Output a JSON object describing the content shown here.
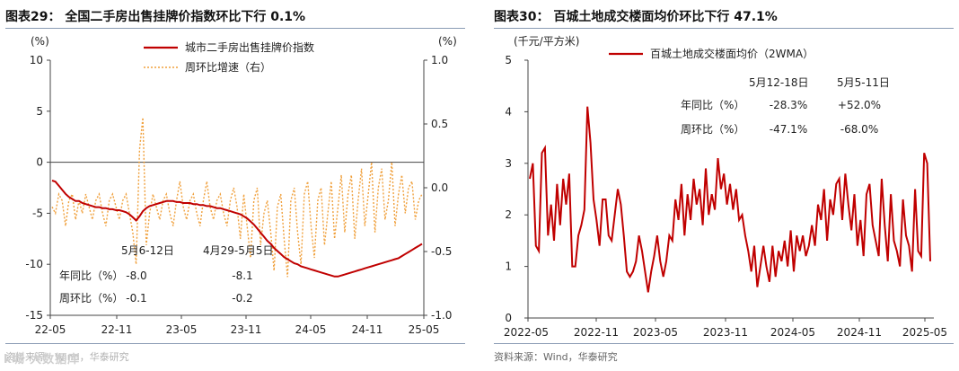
{
  "chart_data": [
    {
      "type": "line",
      "title": "图表29： 全国二手房出售挂牌价指数环比下行 0.1%",
      "source": "资料来源：Wind，华泰研究",
      "left_unit": "(%)",
      "right_unit": "(%)",
      "ylim_left": [
        -15,
        10
      ],
      "ylim_right": [
        -1.0,
        1.0
      ],
      "left_ticks": [
        "10",
        "5",
        "0",
        "-5",
        "-10",
        "-15"
      ],
      "right_ticks": [
        "1.0",
        "0.5",
        "0.0",
        "-0.5",
        "-1.0"
      ],
      "x_ticks": [
        "22-05",
        "22-11",
        "23-05",
        "23-11",
        "24-05",
        "24-11",
        "25-05"
      ],
      "legend": [
        "城市二手房出售挂牌价指数",
        "周环比增速（右）"
      ],
      "series": [
        {
          "name": "城市二手房出售挂牌价指数",
          "axis": "left",
          "color": "#c00000",
          "values": [
            -1.8,
            -1.9,
            -2.3,
            -2.7,
            -3.1,
            -3.4,
            -3.6,
            -3.8,
            -3.8,
            -4.0,
            -4.1,
            -4.2,
            -4.3,
            -4.4,
            -4.4,
            -4.5,
            -4.5,
            -4.6,
            -4.6,
            -4.7,
            -4.7,
            -4.8,
            -4.9,
            -5.1,
            -5.4,
            -5.7,
            -5.3,
            -4.8,
            -4.5,
            -4.3,
            -4.2,
            -4.1,
            -4.0,
            -3.9,
            -3.8,
            -3.8,
            -3.8,
            -3.9,
            -3.9,
            -4.0,
            -4.0,
            -4.0,
            -4.1,
            -4.1,
            -4.2,
            -4.2,
            -4.3,
            -4.3,
            -4.4,
            -4.5,
            -4.5,
            -4.6,
            -4.7,
            -4.8,
            -4.9,
            -5.0,
            -5.1,
            -5.3,
            -5.5,
            -5.8,
            -6.1,
            -6.5,
            -6.9,
            -7.3,
            -7.7,
            -8.0,
            -8.4,
            -8.7,
            -9.0,
            -9.3,
            -9.5,
            -9.7,
            -9.9,
            -10.0,
            -10.2,
            -10.3,
            -10.4,
            -10.5,
            -10.6,
            -10.7,
            -10.8,
            -10.9,
            -11.0,
            -11.1,
            -11.2,
            -11.2,
            -11.1,
            -11.0,
            -10.9,
            -10.8,
            -10.7,
            -10.6,
            -10.5,
            -10.4,
            -10.3,
            -10.2,
            -10.1,
            -10.0,
            -9.9,
            -9.8,
            -9.7,
            -9.6,
            -9.5,
            -9.4,
            -9.2,
            -9.0,
            -8.8,
            -8.6,
            -8.4,
            -8.2,
            -8.0
          ]
        },
        {
          "name": "周环比增速（右）",
          "axis": "right",
          "color": "#f0a03c",
          "values": [
            -0.15,
            -0.2,
            -0.05,
            -0.1,
            -0.3,
            -0.1,
            -0.05,
            -0.25,
            -0.1,
            -0.2,
            -0.05,
            -0.15,
            -0.25,
            -0.1,
            -0.05,
            -0.2,
            -0.3,
            -0.1,
            -0.05,
            -0.15,
            -0.25,
            -0.1,
            -0.05,
            -0.2,
            -0.35,
            -0.6,
            0.3,
            0.55,
            -0.45,
            -0.2,
            -0.05,
            -0.15,
            -0.25,
            -0.1,
            -0.05,
            -0.2,
            -0.3,
            -0.1,
            0.05,
            -0.15,
            -0.25,
            -0.1,
            -0.05,
            -0.2,
            -0.3,
            -0.1,
            0.05,
            -0.15,
            -0.25,
            -0.1,
            -0.05,
            -0.2,
            -0.3,
            -0.1,
            0.0,
            -0.15,
            -0.4,
            -0.05,
            -0.3,
            -0.55,
            -0.1,
            0.0,
            -0.45,
            -0.2,
            -0.1,
            -0.35,
            -0.65,
            -0.15,
            -0.05,
            -0.4,
            -0.7,
            -0.1,
            0.0,
            -0.35,
            -0.6,
            -0.05,
            0.05,
            -0.3,
            -0.55,
            -0.1,
            0.0,
            -0.45,
            -0.2,
            0.05,
            -0.4,
            -0.15,
            0.1,
            -0.35,
            -0.05,
            0.1,
            -0.4,
            -0.1,
            0.15,
            -0.3,
            -0.05,
            0.2,
            -0.35,
            0.0,
            0.15,
            -0.25,
            -0.1,
            0.2,
            -0.3,
            -0.05,
            0.1,
            -0.2,
            0.0,
            0.05,
            -0.25,
            -0.1,
            -0.05
          ]
        }
      ],
      "stats_table": {
        "periods": [
          "5月6-12日",
          "4月29-5月5日"
        ],
        "rows": [
          {
            "label": "年同比（%）",
            "values": [
              "-8.0",
              "-8.1"
            ]
          },
          {
            "label": "周环比（%）",
            "values": [
              "-0.1",
              "-0.2"
            ]
          }
        ]
      }
    },
    {
      "type": "line",
      "title": "图表30： 百城土地成交楼面均价环比下行 47.1%",
      "source": "资料来源：Wind，华泰研究",
      "unit": "(千元/平方米)",
      "ylim": [
        0,
        5
      ],
      "y_ticks": [
        "5",
        "4",
        "3",
        "2",
        "1",
        "0"
      ],
      "x_ticks": [
        "2022-05",
        "2022-11",
        "2023-05",
        "2023-11",
        "2024-05",
        "2024-11",
        "2025-05"
      ],
      "legend": [
        "百城土地成交楼面均价（2WMA）"
      ],
      "series": [
        {
          "name": "百城土地成交楼面均价（2WMA）",
          "color": "#c00000",
          "values": [
            2.7,
            3.0,
            1.4,
            1.3,
            3.2,
            3.3,
            1.6,
            2.2,
            1.5,
            2.6,
            1.8,
            2.7,
            2.2,
            2.8,
            1.0,
            1.0,
            1.6,
            1.8,
            2.1,
            4.1,
            3.4,
            2.3,
            1.9,
            1.4,
            2.3,
            2.3,
            1.6,
            1.5,
            2.0,
            2.5,
            2.2,
            1.6,
            0.9,
            0.8,
            0.9,
            1.1,
            1.6,
            1.3,
            0.9,
            0.5,
            0.9,
            1.2,
            1.6,
            1.1,
            0.8,
            1.1,
            1.6,
            1.5,
            2.3,
            1.9,
            2.6,
            1.6,
            2.4,
            1.9,
            2.7,
            2.2,
            2.5,
            1.8,
            2.9,
            2.0,
            2.4,
            2.1,
            3.1,
            2.5,
            2.8,
            2.2,
            2.6,
            2.1,
            2.5,
            1.9,
            2.0,
            1.6,
            1.3,
            0.9,
            1.4,
            0.6,
            1.0,
            1.4,
            1.0,
            0.7,
            1.4,
            0.8,
            1.3,
            1.1,
            1.5,
            1.0,
            1.7,
            0.9,
            1.6,
            1.3,
            1.6,
            1.2,
            1.4,
            1.8,
            1.4,
            2.2,
            1.9,
            2.5,
            1.5,
            2.3,
            2.0,
            2.6,
            2.7,
            1.9,
            2.8,
            2.2,
            1.7,
            2.4,
            1.4,
            1.9,
            1.2,
            2.4,
            2.6,
            1.8,
            1.5,
            1.2,
            2.7,
            1.8,
            1.1,
            2.4,
            1.5,
            1.3,
            1.0,
            2.3,
            1.6,
            1.4,
            0.9,
            2.5,
            1.3,
            1.2,
            3.2,
            3.0,
            1.1
          ],
          "last_values": [
            1.1
          ]
        }
      ],
      "stats_table": {
        "periods": [
          "5月12-18日",
          "5月5-11日"
        ],
        "rows": [
          {
            "label": "年同比（%）",
            "values": [
              "-28.3%",
              "+52.0%"
            ]
          },
          {
            "label": "周环比（%）",
            "values": [
              "-47.1%",
              "-68.0%"
            ]
          }
        ]
      }
    }
  ],
  "watermark": "k城 大数据库"
}
